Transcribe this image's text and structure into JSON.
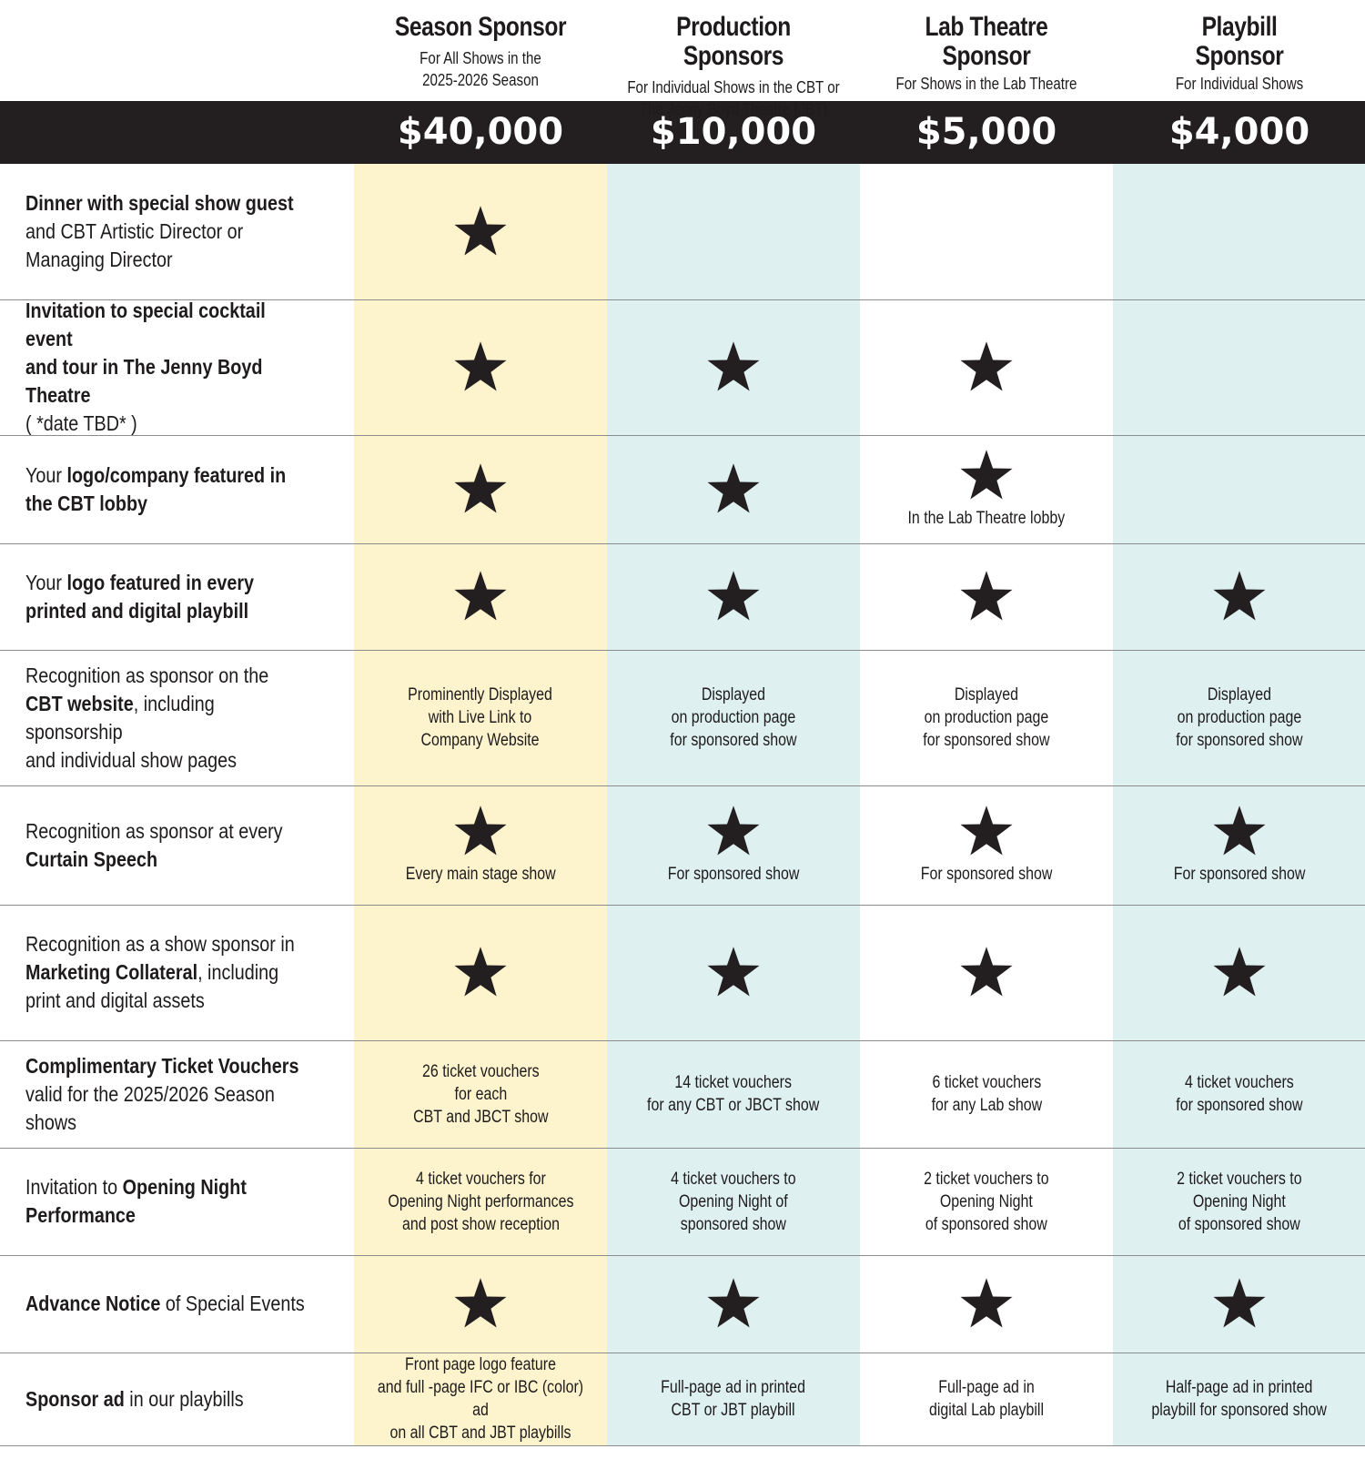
{
  "colors": {
    "season_bg": "#fdf3cc",
    "alt_bg": "#dff0f1",
    "bar": "#231f20",
    "star": "#231f20"
  },
  "tiers": [
    {
      "name": "Season Sponsor",
      "subtitle": "For All Shows in the\n2025-2026 Season",
      "price": "$40,000",
      "bg": "yellow"
    },
    {
      "name": "Production Sponsors",
      "subtitle": "For Individual Shows in the CBT or\nThe Jenny Boyd Theatre (JBT)",
      "price": "$10,000",
      "bg": "blue"
    },
    {
      "name": "Lab Theatre\nSponsor",
      "subtitle": "For Shows in the Lab Theatre",
      "price": "$5,000",
      "bg": "white"
    },
    {
      "name": "Playbill\nSponsor",
      "subtitle": "For Individual Shows",
      "price": "$4,000",
      "bg": "blue"
    }
  ],
  "rows": [
    {
      "label_html": "<b>Dinner with special show guest</b><br>and CBT Artistic Director or<br>Managing Director",
      "cells": [
        {
          "star": true
        },
        {
          "star": false
        },
        {
          "star": false
        },
        {
          "star": false
        }
      ]
    },
    {
      "label_html": "<b>Invitation to special cocktail event<br>and tour in The Jenny Boyd Theatre</b><br>( *date TBD* )",
      "cells": [
        {
          "star": true
        },
        {
          "star": true
        },
        {
          "star": true
        },
        {
          "star": false
        }
      ]
    },
    {
      "label_html": "Your <b>logo/company featured in<br>the CBT lobby</b>",
      "cells": [
        {
          "star": true
        },
        {
          "star": true
        },
        {
          "star": true,
          "note": "In the Lab Theatre lobby"
        },
        {
          "star": false
        }
      ]
    },
    {
      "label_html": "Your <b>logo featured in every<br>printed and digital playbill</b>",
      "cells": [
        {
          "star": true
        },
        {
          "star": true
        },
        {
          "star": true
        },
        {
          "star": true
        }
      ]
    },
    {
      "label_html": "Recognition as sponsor on the<br><b>CBT website</b>, including sponsorship<br>and individual show pages",
      "cells": [
        {
          "star": false,
          "note": "Prominently Displayed\nwith Live Link to\nCompany Website"
        },
        {
          "star": false,
          "note": "Displayed\non production page\nfor sponsored show"
        },
        {
          "star": false,
          "note": "Displayed\non production page\nfor sponsored show"
        },
        {
          "star": false,
          "note": "Displayed\non production page\nfor sponsored show"
        }
      ]
    },
    {
      "label_html": "Recognition as sponsor at every<br><b>Curtain Speech</b>",
      "cells": [
        {
          "star": true,
          "note": "Every main stage show"
        },
        {
          "star": true,
          "note": "For sponsored show"
        },
        {
          "star": true,
          "note": "For sponsored show"
        },
        {
          "star": true,
          "note": "For sponsored show"
        }
      ]
    },
    {
      "label_html": "Recognition as a show sponsor in<br><b>Marketing Collateral</b>, including<br>print and digital assets",
      "cells": [
        {
          "star": true
        },
        {
          "star": true
        },
        {
          "star": true
        },
        {
          "star": true
        }
      ]
    },
    {
      "label_html": "<b>Complimentary Ticket Vouchers</b><br>valid for the 2025/2026 Season shows",
      "cells": [
        {
          "star": false,
          "note": "26 ticket vouchers\nfor each\nCBT and JBCT show"
        },
        {
          "star": false,
          "note": "14 ticket vouchers\nfor any CBT or JBCT show"
        },
        {
          "star": false,
          "note": "6 ticket vouchers\nfor any Lab show"
        },
        {
          "star": false,
          "note": "4 ticket vouchers\nfor sponsored show"
        }
      ]
    },
    {
      "label_html": "Invitation to <b>Opening Night<br>Performance</b>",
      "cells": [
        {
          "star": false,
          "note": "4 ticket vouchers for\nOpening Night performances\nand post show reception"
        },
        {
          "star": false,
          "note": "4 ticket vouchers to\nOpening Night of\nsponsored show"
        },
        {
          "star": false,
          "note": "2 ticket vouchers to\nOpening Night\nof sponsored show"
        },
        {
          "star": false,
          "note": "2 ticket vouchers to\nOpening Night\nof sponsored show"
        }
      ]
    },
    {
      "label_html": "<b>Advance Notice</b> of Special Events",
      "cells": [
        {
          "star": true
        },
        {
          "star": true
        },
        {
          "star": true
        },
        {
          "star": true
        }
      ]
    },
    {
      "label_html": "<b>Sponsor ad</b> in our playbills",
      "cells": [
        {
          "star": false,
          "note": "Front page logo feature\nand full -page IFC or IBC (color) ad\non all CBT and JBT playbills"
        },
        {
          "star": false,
          "note": "Full-page ad in printed\nCBT or JBT playbill"
        },
        {
          "star": false,
          "note": "Full-page ad in\ndigital Lab playbill"
        },
        {
          "star": false,
          "note": "Half-page ad in printed\nplaybill for sponsored show"
        }
      ]
    }
  ]
}
